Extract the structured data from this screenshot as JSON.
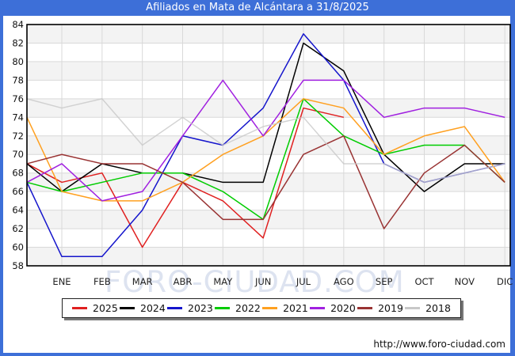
{
  "window": {
    "title": "Afiliados en Mata de Alcántara a 31/8/2025",
    "titlebar_color": "#3d6fd8",
    "footer_url": "http://www.foro-ciudad.com",
    "watermark": "FORO-CIUDAD.COM"
  },
  "chart_data": {
    "type": "line",
    "title": "Afiliados en Mata de Alcántara a 31/8/2025",
    "x_categories": [
      "",
      "ENE",
      "FEB",
      "MAR",
      "ABR",
      "MAY",
      "JUN",
      "JUL",
      "AGO",
      "SEP",
      "OCT",
      "NOV",
      "DIC"
    ],
    "note_first_point": "left-axis start value = previous December",
    "y_axis": {
      "min": 58,
      "max": 84,
      "step": 2
    },
    "grid": true,
    "legend_position": "bottom",
    "series": [
      {
        "name": "2025",
        "color": "#e02020",
        "values": [
          69,
          67,
          68,
          60,
          67,
          65,
          61,
          75,
          74,
          null,
          null,
          null,
          null
        ]
      },
      {
        "name": "2024",
        "color": "#000000",
        "values": [
          69,
          66,
          69,
          68,
          68,
          67,
          67,
          82,
          79,
          70,
          66,
          69,
          69
        ]
      },
      {
        "name": "2023",
        "color": "#1515cc",
        "values": [
          67,
          59,
          59,
          64,
          72,
          71,
          75,
          83,
          78,
          69,
          67,
          68,
          69
        ]
      },
      {
        "name": "2022",
        "color": "#00cc00",
        "values": [
          67,
          66,
          67,
          68,
          68,
          66,
          63,
          76,
          72,
          70,
          71,
          71,
          67
        ]
      },
      {
        "name": "2021",
        "color": "#ffa020",
        "values": [
          74,
          66,
          65,
          65,
          67,
          70,
          72,
          76,
          75,
          70,
          72,
          73,
          67
        ]
      },
      {
        "name": "2020",
        "color": "#a020e0",
        "values": [
          67,
          69,
          65,
          66,
          72,
          78,
          72,
          78,
          78,
          74,
          75,
          75,
          74
        ]
      },
      {
        "name": "2019",
        "color": "#993333",
        "values": [
          69,
          70,
          69,
          69,
          67,
          63,
          63,
          70,
          72,
          62,
          68,
          71,
          67
        ]
      },
      {
        "name": "2018",
        "color": "#c8c8c8",
        "values": [
          76,
          75,
          76,
          71,
          74,
          71,
          73,
          74,
          69,
          69,
          67,
          68,
          69
        ]
      }
    ]
  }
}
